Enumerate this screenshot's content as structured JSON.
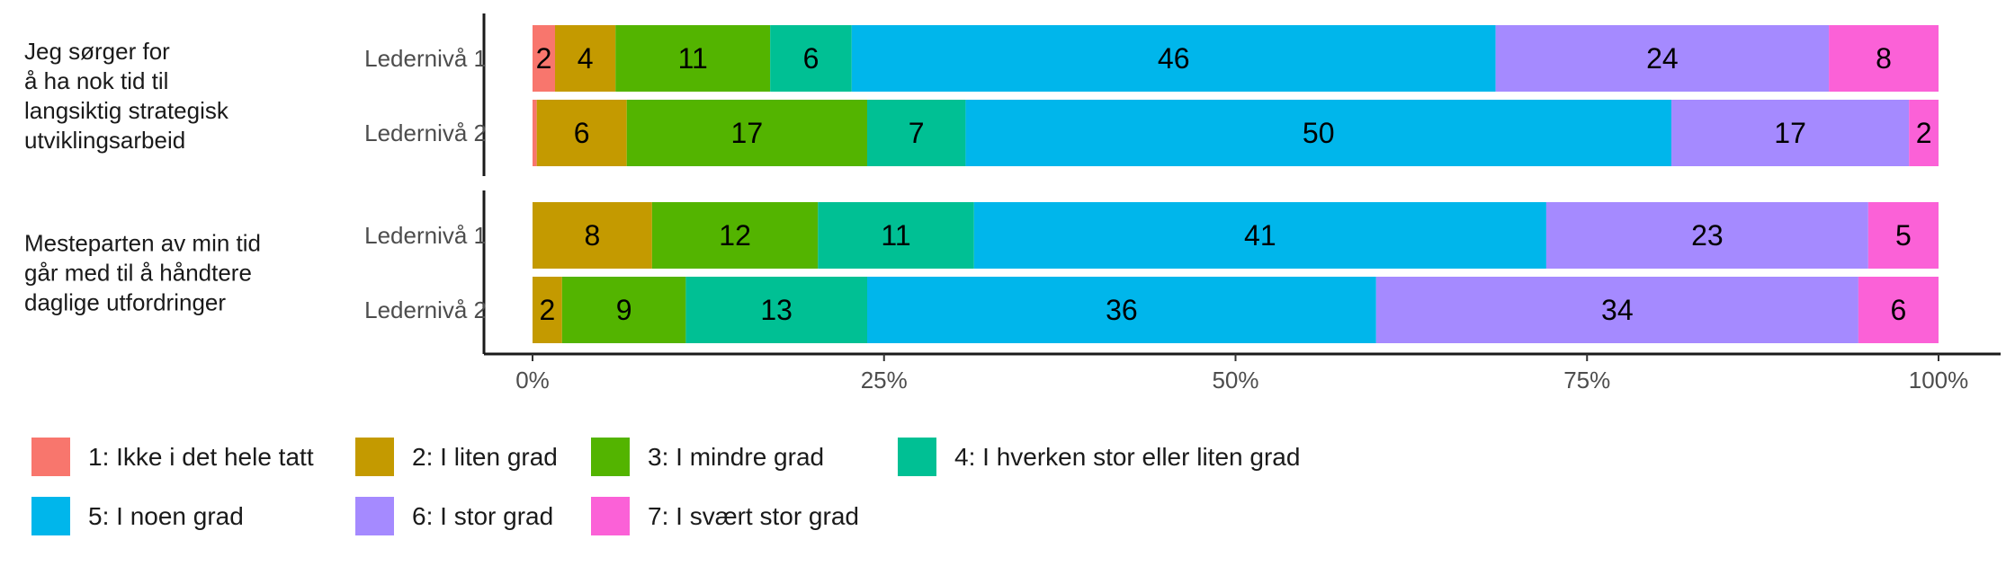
{
  "chart_data": {
    "type": "bar",
    "orientation": "horizontal",
    "stacked": "percent",
    "xlim": [
      0,
      100
    ],
    "x_ticks": [
      "0%",
      "25%",
      "50%",
      "75%",
      "100%"
    ],
    "grid": false,
    "legend_position": "bottom",
    "legend": [
      {
        "label": "1: Ikke i det hele tatt",
        "color": "#F8766D"
      },
      {
        "label": "2: I liten grad",
        "color": "#C49A00"
      },
      {
        "label": "3: I mindre grad",
        "color": "#53B400"
      },
      {
        "label": "4: I hverken stor eller liten grad",
        "color": "#00C094"
      },
      {
        "label": "5: I noen grad",
        "color": "#00B6EB"
      },
      {
        "label": "6: I stor grad",
        "color": "#A58AFF"
      },
      {
        "label": "7: I svært stor grad",
        "color": "#FB61D7"
      }
    ],
    "groups": [
      {
        "label_lines": [
          "Jeg sørger for",
          "å ha nok tid til",
          "langsiktig strategisk",
          "utviklingsarbeid"
        ],
        "rows": [
          {
            "label": "Ledernivå 1",
            "values": [
              1.6,
              4.3,
              11.0,
              5.8,
              45.8,
              23.7,
              7.8
            ],
            "labels": [
              "2",
              "4",
              "11",
              "6",
              "46",
              "24",
              "8"
            ]
          },
          {
            "label": "Ledernivå 2",
            "values": [
              0.3,
              6.4,
              17.1,
              7.0,
              50.2,
              16.9,
              2.1
            ],
            "labels": [
              "",
              "6",
              "17",
              "7",
              "50",
              "17",
              "2"
            ]
          }
        ]
      },
      {
        "label_lines": [
          "Mesteparten av min tid",
          "går med til å håndtere",
          "daglige utfordringer"
        ],
        "rows": [
          {
            "label": "Ledernivå 1",
            "values": [
              0,
              8.5,
              11.8,
              11.1,
              40.7,
              22.9,
              5.0
            ],
            "labels": [
              "",
              "8",
              "12",
              "11",
              "41",
              "23",
              "5"
            ]
          },
          {
            "label": "Ledernivå 2",
            "values": [
              0,
              2.1,
              8.8,
              12.9,
              36.2,
              34.3,
              5.7
            ],
            "labels": [
              "",
              "2",
              "9",
              "13",
              "36",
              "34",
              "6"
            ]
          }
        ]
      }
    ]
  }
}
